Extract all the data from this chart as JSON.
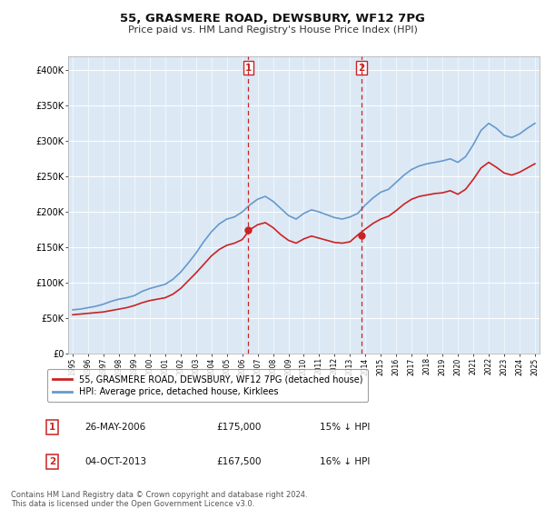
{
  "title": "55, GRASMERE ROAD, DEWSBURY, WF12 7PG",
  "subtitle": "Price paid vs. HM Land Registry's House Price Index (HPI)",
  "title_fontsize": 9.5,
  "subtitle_fontsize": 8.0,
  "x_start_year": 1995,
  "x_end_year": 2025,
  "ylim": [
    0,
    420000
  ],
  "yticks": [
    0,
    50000,
    100000,
    150000,
    200000,
    250000,
    300000,
    350000,
    400000
  ],
  "ytick_labels": [
    "£0",
    "£50K",
    "£100K",
    "£150K",
    "£200K",
    "£250K",
    "£300K",
    "£350K",
    "£400K"
  ],
  "plot_bg_color": "#dce9f5",
  "grid_color": "#ffffff",
  "hpi_line_color": "#6699cc",
  "price_line_color": "#cc2222",
  "vline_color": "#cc2222",
  "sale1_year": 2006.4,
  "sale1_price": 175000,
  "sale1_label": "1",
  "sale2_year": 2013.75,
  "sale2_price": 167500,
  "sale2_label": "2",
  "marker_color": "#cc2222",
  "marker_size": 5,
  "legend_label_red": "55, GRASMERE ROAD, DEWSBURY, WF12 7PG (detached house)",
  "legend_label_blue": "HPI: Average price, detached house, Kirklees",
  "table_rows": [
    {
      "num": "1",
      "date": "26-MAY-2006",
      "price": "£175,000",
      "pct": "15% ↓ HPI"
    },
    {
      "num": "2",
      "date": "04-OCT-2013",
      "price": "£167,500",
      "pct": "16% ↓ HPI"
    }
  ],
  "footnote": "Contains HM Land Registry data © Crown copyright and database right 2024.\nThis data is licensed under the Open Government Licence v3.0.",
  "hpi_data": {
    "years": [
      1995,
      1995.5,
      1996,
      1996.5,
      1997,
      1997.5,
      1998,
      1998.5,
      1999,
      1999.5,
      2000,
      2000.5,
      2001,
      2001.5,
      2002,
      2002.5,
      2003,
      2003.5,
      2004,
      2004.5,
      2005,
      2005.5,
      2006,
      2006.5,
      2007,
      2007.5,
      2008,
      2008.5,
      2009,
      2009.5,
      2010,
      2010.5,
      2011,
      2011.5,
      2012,
      2012.5,
      2013,
      2013.5,
      2014,
      2014.5,
      2015,
      2015.5,
      2016,
      2016.5,
      2017,
      2017.5,
      2018,
      2018.5,
      2019,
      2019.5,
      2020,
      2020.5,
      2021,
      2021.5,
      2022,
      2022.5,
      2023,
      2023.5,
      2024,
      2024.5,
      2025
    ],
    "values": [
      62000,
      63000,
      65000,
      67000,
      70000,
      74000,
      77000,
      79000,
      82000,
      88000,
      92000,
      95000,
      98000,
      105000,
      115000,
      128000,
      142000,
      158000,
      172000,
      183000,
      190000,
      193000,
      200000,
      210000,
      218000,
      222000,
      215000,
      205000,
      195000,
      190000,
      198000,
      203000,
      200000,
      196000,
      192000,
      190000,
      193000,
      198000,
      210000,
      220000,
      228000,
      232000,
      242000,
      252000,
      260000,
      265000,
      268000,
      270000,
      272000,
      275000,
      270000,
      278000,
      295000,
      315000,
      325000,
      318000,
      308000,
      305000,
      310000,
      318000,
      325000
    ]
  },
  "price_data": {
    "years": [
      1995,
      1995.5,
      1996,
      1996.5,
      1997,
      1997.5,
      1998,
      1998.5,
      1999,
      1999.5,
      2000,
      2000.5,
      2001,
      2001.5,
      2002,
      2002.5,
      2003,
      2003.5,
      2004,
      2004.5,
      2005,
      2005.5,
      2006,
      2006.5,
      2007,
      2007.5,
      2008,
      2008.5,
      2009,
      2009.5,
      2010,
      2010.5,
      2011,
      2011.5,
      2012,
      2012.5,
      2013,
      2013.5,
      2014,
      2014.5,
      2015,
      2015.5,
      2016,
      2016.5,
      2017,
      2017.5,
      2018,
      2018.5,
      2019,
      2019.5,
      2020,
      2020.5,
      2021,
      2021.5,
      2022,
      2022.5,
      2023,
      2023.5,
      2024,
      2024.5,
      2025
    ],
    "values": [
      55000,
      56000,
      57000,
      58000,
      59000,
      61000,
      63000,
      65000,
      68000,
      72000,
      75000,
      77000,
      79000,
      84000,
      92000,
      103000,
      114000,
      126000,
      138000,
      147000,
      153000,
      156000,
      161000,
      175000,
      182000,
      185000,
      178000,
      168000,
      160000,
      156000,
      162000,
      166000,
      163000,
      160000,
      157000,
      156000,
      158000,
      167500,
      176000,
      184000,
      190000,
      194000,
      202000,
      211000,
      218000,
      222000,
      224000,
      226000,
      227000,
      230000,
      225000,
      232000,
      246000,
      262000,
      270000,
      263000,
      255000,
      252000,
      256000,
      262000,
      268000
    ]
  }
}
